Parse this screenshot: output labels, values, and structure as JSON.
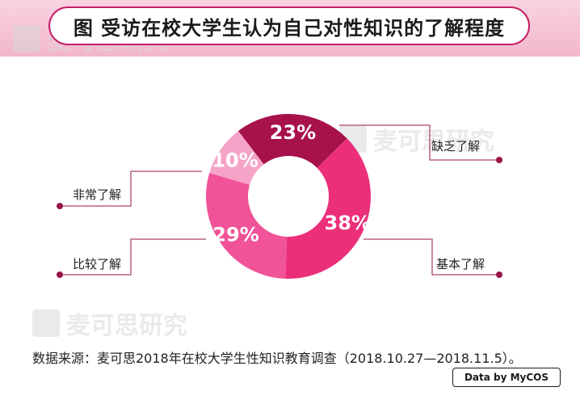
{
  "title": "图  受访在校大学生认为自己对性知识的了解程度",
  "watermark_text": "麦可思研究",
  "source_note": "数据来源：麦可思2018年在校大学生性知识教育调查（2018.10.27—2018.11.5）。",
  "badge_text": "Data by MyCOS",
  "chart_data": {
    "type": "pie",
    "title": "受访在校大学生认为自己对性知识的了解程度",
    "unit": "%",
    "categories": [
      "缺乏了解",
      "基本了解",
      "比较了解",
      "非常了解"
    ],
    "values": [
      23,
      38,
      29,
      10
    ],
    "labels": [
      "23%",
      "38%",
      "29%",
      "10%"
    ],
    "colors": [
      "#a7124b",
      "#ec2f79",
      "#f15398",
      "#f5a4c8"
    ],
    "donut": true
  }
}
